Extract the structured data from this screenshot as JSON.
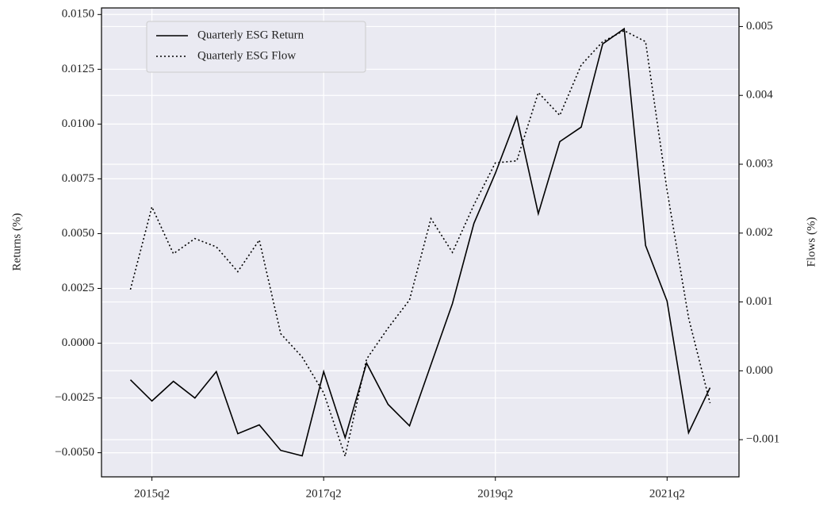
{
  "chart_data": {
    "type": "line",
    "categories": [
      null,
      "2015q2",
      null,
      null,
      null,
      null,
      null,
      null,
      null,
      "2017q2",
      null,
      null,
      null,
      null,
      null,
      null,
      null,
      "2019q2",
      null,
      null,
      null,
      null,
      null,
      null,
      null,
      "2021q2",
      null,
      null
    ],
    "series": [
      {
        "name": "Quarterly ESG Return",
        "color": "#000000",
        "style": "solid",
        "values": [
          -0.00167,
          -0.00264,
          -0.00174,
          -0.0025,
          -0.0013,
          -0.00413,
          -0.00373,
          -0.00489,
          -0.00514,
          -0.0013,
          -0.00431,
          -0.00091,
          -0.00279,
          -0.00377,
          -0.00098,
          0.00181,
          0.00547,
          0.00775,
          0.01033,
          0.00591,
          0.0092,
          0.00986,
          0.01366,
          0.01435,
          0.00446,
          0.00192,
          -0.00409,
          -0.00203
        ]
      },
      {
        "name": "Quarterly ESG Flow",
        "color": "#000000",
        "style": "dotted",
        "axis": "y2",
        "values": [
          0.00118,
          0.00238,
          0.0017,
          0.00192,
          0.0018,
          0.00144,
          0.0019,
          0.00054,
          0.0002,
          -0.00032,
          -0.00124,
          0.00017,
          0.00062,
          0.00103,
          0.00221,
          0.00172,
          0.00241,
          0.00302,
          0.00305,
          0.00404,
          0.00371,
          0.00444,
          0.00478,
          0.00494,
          0.00478,
          0.00262,
          0.00077,
          -0.00047
        ]
      }
    ],
    "ylabel": "Returns (%)",
    "y2label": "Flows (%)",
    "ylim": [
      -0.0061,
      0.0153
    ],
    "yticks": [
      {
        "value": -0.005,
        "label": "−0.0050"
      },
      {
        "value": -0.0025,
        "label": "−0.0025"
      },
      {
        "value": 0,
        "label": "0.0000"
      },
      {
        "value": 0.0025,
        "label": "0.0025"
      },
      {
        "value": 0.005,
        "label": "0.0050"
      },
      {
        "value": 0.0075,
        "label": "0.0075"
      },
      {
        "value": 0.01,
        "label": "0.0100"
      },
      {
        "value": 0.0125,
        "label": "0.0125"
      },
      {
        "value": 0.015,
        "label": "0.0150"
      }
    ],
    "y2lim": [
      -0.00154,
      0.00527
    ],
    "y2ticks": [
      {
        "value": -0.001,
        "label": "−0.001"
      },
      {
        "value": 0,
        "label": "0.000"
      },
      0.001,
      0.002,
      0.003,
      0.004,
      0.005
    ],
    "grid": true,
    "legend": "upper left"
  }
}
